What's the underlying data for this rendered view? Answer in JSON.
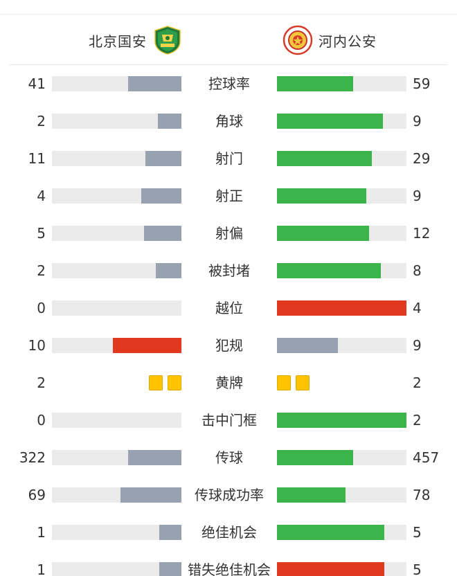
{
  "header": {
    "home_team": "北京国安",
    "away_team": "河内公安",
    "home_crest_icon": "beijing-guoan-crest-icon",
    "away_crest_icon": "hanoi-police-crest-icon"
  },
  "colors": {
    "track": "#ebebeb",
    "grey": "#98a1b0",
    "green": "#3bb54a",
    "red": "#e0391f",
    "yellow_card": "#ffc400"
  },
  "stats": [
    {
      "label": "控球率",
      "home": "41",
      "away": "59",
      "home_fill": 0.41,
      "away_fill": 0.59,
      "home_color": "grey",
      "away_color": "green"
    },
    {
      "label": "角球",
      "home": "2",
      "away": "9",
      "home_fill": 0.18,
      "away_fill": 0.82,
      "home_color": "grey",
      "away_color": "green"
    },
    {
      "label": "射门",
      "home": "11",
      "away": "29",
      "home_fill": 0.28,
      "away_fill": 0.73,
      "home_color": "grey",
      "away_color": "green"
    },
    {
      "label": "射正",
      "home": "4",
      "away": "9",
      "home_fill": 0.31,
      "away_fill": 0.69,
      "home_color": "grey",
      "away_color": "green"
    },
    {
      "label": "射偏",
      "home": "5",
      "away": "12",
      "home_fill": 0.29,
      "away_fill": 0.71,
      "home_color": "grey",
      "away_color": "green"
    },
    {
      "label": "被封堵",
      "home": "2",
      "away": "8",
      "home_fill": 0.2,
      "away_fill": 0.8,
      "home_color": "grey",
      "away_color": "green"
    },
    {
      "label": "越位",
      "home": "0",
      "away": "4",
      "home_fill": 0.0,
      "away_fill": 1.0,
      "home_color": "grey",
      "away_color": "red"
    },
    {
      "label": "犯规",
      "home": "10",
      "away": "9",
      "home_fill": 0.53,
      "away_fill": 0.47,
      "home_color": "red",
      "away_color": "grey"
    },
    {
      "label": "黄牌",
      "home": "2",
      "away": "2",
      "home_cards": 2,
      "away_cards": 2
    },
    {
      "label": "击中门框",
      "home": "0",
      "away": "2",
      "home_fill": 0.0,
      "away_fill": 1.0,
      "home_color": "grey",
      "away_color": "green"
    },
    {
      "label": "传球",
      "home": "322",
      "away": "457",
      "home_fill": 0.41,
      "away_fill": 0.59,
      "home_color": "grey",
      "away_color": "green"
    },
    {
      "label": "传球成功率",
      "home": "69",
      "away": "78",
      "home_fill": 0.47,
      "away_fill": 0.53,
      "home_color": "grey",
      "away_color": "green"
    },
    {
      "label": "绝佳机会",
      "home": "1",
      "away": "5",
      "home_fill": 0.17,
      "away_fill": 0.83,
      "home_color": "grey",
      "away_color": "green"
    },
    {
      "label": "错失绝佳机会",
      "home": "1",
      "away": "5",
      "home_fill": 0.17,
      "away_fill": 0.83,
      "home_color": "grey",
      "away_color": "red"
    }
  ]
}
